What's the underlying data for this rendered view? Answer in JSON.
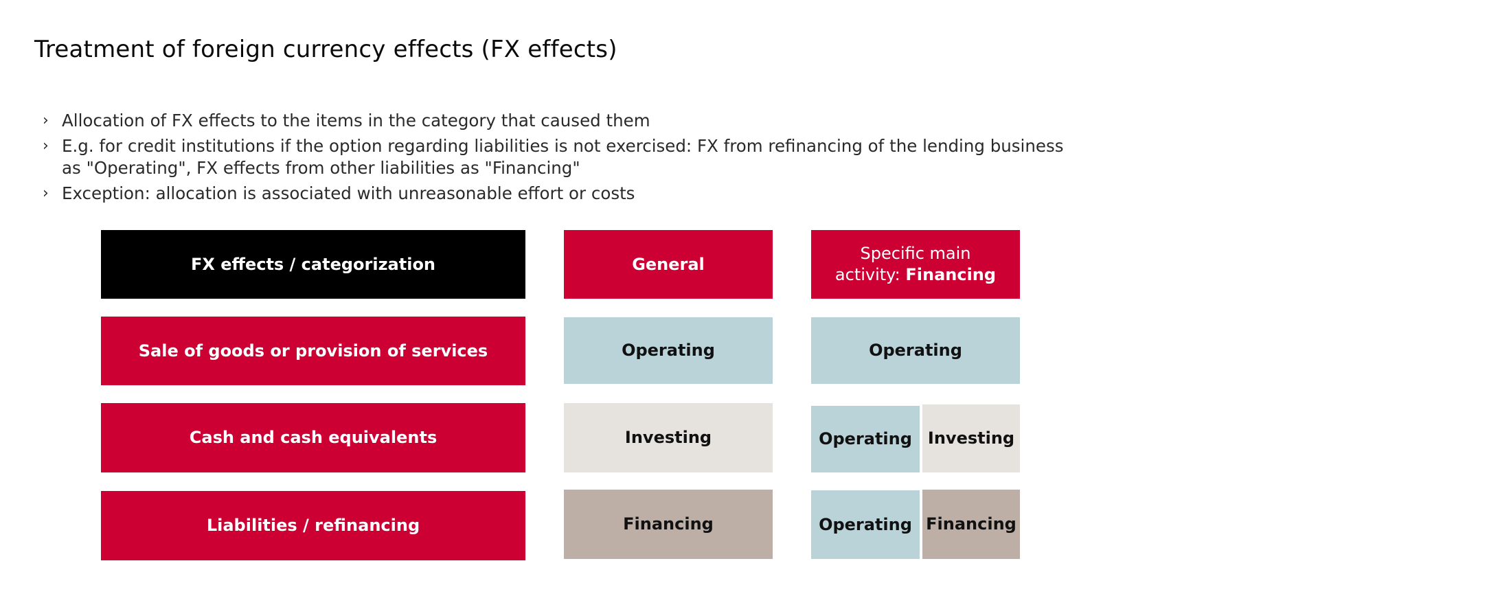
{
  "title": "Treatment of foreign currency effects (FX effects)",
  "bullets": [
    {
      "marker": "›",
      "line1": "Allocation of FX effects to the items in the category that caused them",
      "line2": ""
    },
    {
      "marker": "›",
      "line1": "E.g. for credit institutions if the option regarding liabilities is not exercised: FX from refinancing of the lending business",
      "line2": "as \"Operating\", FX effects from other liabilities as \"Financing\""
    },
    {
      "marker": "›",
      "line1": "Exception: allocation is associated with unreasonable effort or costs",
      "line2": ""
    }
  ],
  "table": {
    "header": {
      "categorization": "FX effects / categorization",
      "general": "General",
      "specific_prefix_line1": "Specific main",
      "specific_prefix_line2": "activity: ",
      "specific_bold": "Financing"
    },
    "rows": [
      {
        "label": "Sale of goods or provision of services",
        "general": "Operating",
        "specific": [
          "Operating"
        ]
      },
      {
        "label": "Cash and cash equivalents",
        "general": "Investing",
        "specific": [
          "Operating",
          "Investing"
        ]
      },
      {
        "label": "Liabilities / refinancing",
        "general": "Financing",
        "specific": [
          "Operating",
          "Financing"
        ]
      }
    ]
  },
  "colors": {
    "red": "#cc0033",
    "black": "#000000",
    "operating": "#b9d3d9",
    "investing": "#e6e2dd",
    "financing": "#bdafa6"
  }
}
